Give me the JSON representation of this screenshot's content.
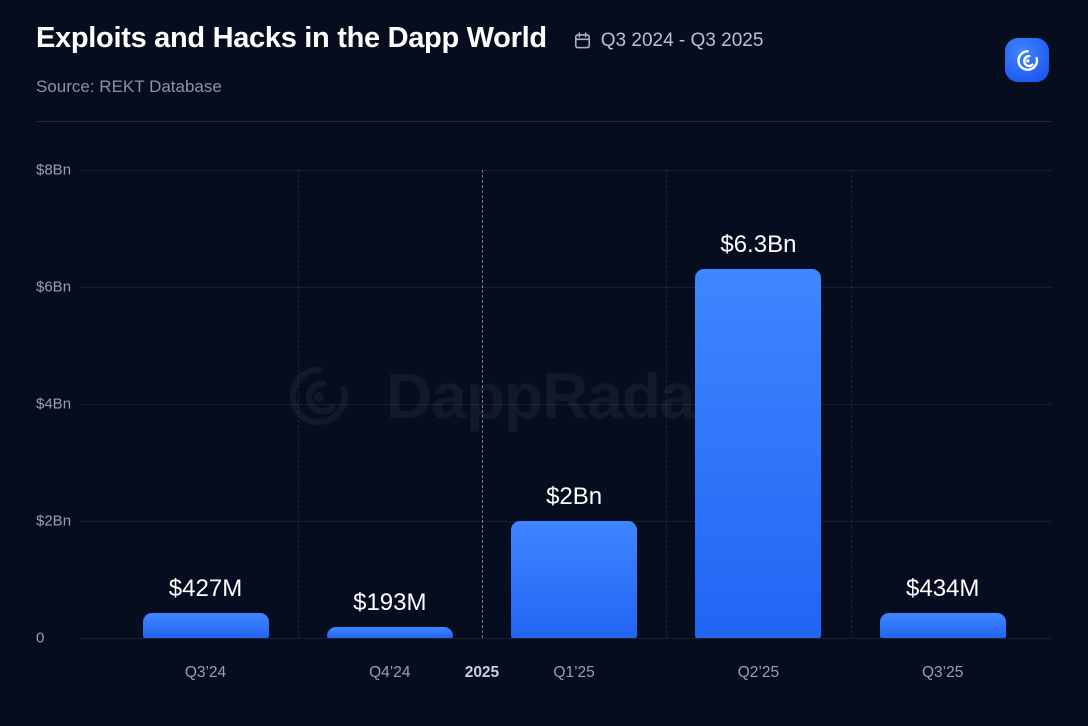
{
  "header": {
    "title": "Exploits and Hacks in the Dapp World",
    "period": "Q3 2024 - Q3 2025",
    "source": "Source: REKT Database"
  },
  "watermark": {
    "text": "DappRadar"
  },
  "colors": {
    "background": "#060d1f",
    "bar_top": "#3f86ff",
    "bar_bottom": "#2364f4",
    "logo_blue": "#2a6bff",
    "grid": "rgba(255,255,255,0.08)",
    "axis_text": "#97a1b4",
    "value_text": "#ffffff"
  },
  "chart_data": {
    "type": "bar",
    "title": "Exploits and Hacks in the Dapp World",
    "subtitle": "Source: REKT Database",
    "unit": "USD (millions)",
    "categories": [
      "Q3’24",
      "Q4’24",
      "Q1’25",
      "Q2’25",
      "Q3’25"
    ],
    "values": [
      427,
      193,
      2000,
      6300,
      434
    ],
    "value_labels": [
      "$427M",
      "$193M",
      "$2Bn",
      "$6.3Bn",
      "$434M"
    ],
    "xlabel": "",
    "ylabel": "",
    "ylim": [
      0,
      8000
    ],
    "yticks": [
      {
        "label": "$8Bn",
        "value": 8000
      },
      {
        "label": "$6Bn",
        "value": 6000
      },
      {
        "label": "$4Bn",
        "value": 4000
      },
      {
        "label": "$2Bn",
        "value": 2000
      },
      {
        "label": "0",
        "value": 0
      }
    ],
    "year_divider": {
      "label": "2025",
      "between": [
        "Q4’24",
        "Q1’25"
      ]
    },
    "grid": true,
    "legend": false
  }
}
